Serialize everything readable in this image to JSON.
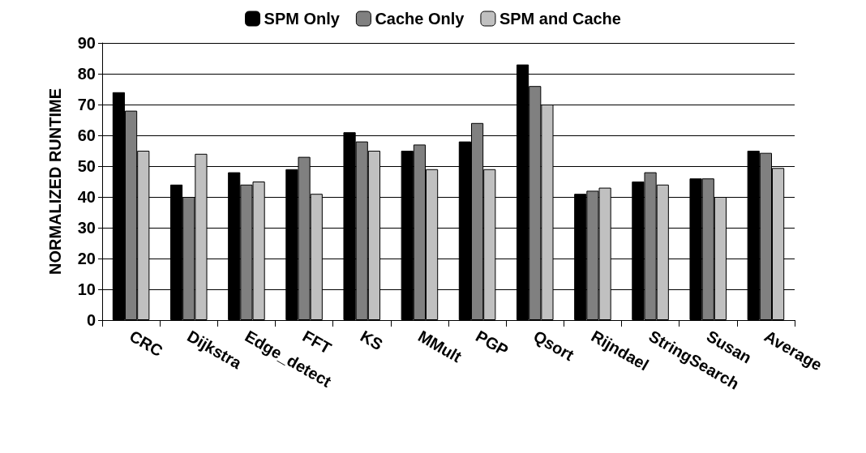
{
  "chart_data": {
    "type": "bar",
    "ylabel": "NORMALIZED RUNTIME",
    "categories": [
      "CRC",
      "Dijkstra",
      "Edge_detect",
      "FFT",
      "KS",
      "MMult",
      "PGP",
      "Qsort",
      "Rijndael",
      "StringSearch",
      "Susan",
      "Average"
    ],
    "series": [
      {
        "name": "SPM Only",
        "color": "#000000",
        "values": [
          74,
          44,
          48,
          49,
          61,
          55,
          58,
          83,
          41,
          45,
          46,
          55
        ]
      },
      {
        "name": "Cache Only",
        "color": "#808080",
        "values": [
          68,
          40,
          44,
          53,
          58,
          57,
          64,
          76,
          42,
          48,
          46,
          54.3
        ]
      },
      {
        "name": "SPM and Cache",
        "color": "#c0c0c0",
        "values": [
          55,
          54,
          45,
          41,
          55,
          49,
          49,
          70,
          43,
          44,
          40,
          49.4
        ]
      }
    ],
    "ylim": [
      0,
      90
    ],
    "yticks": [
      0,
      10,
      20,
      30,
      40,
      50,
      60,
      70,
      80,
      90
    ],
    "grid": "y",
    "legend": "top"
  }
}
